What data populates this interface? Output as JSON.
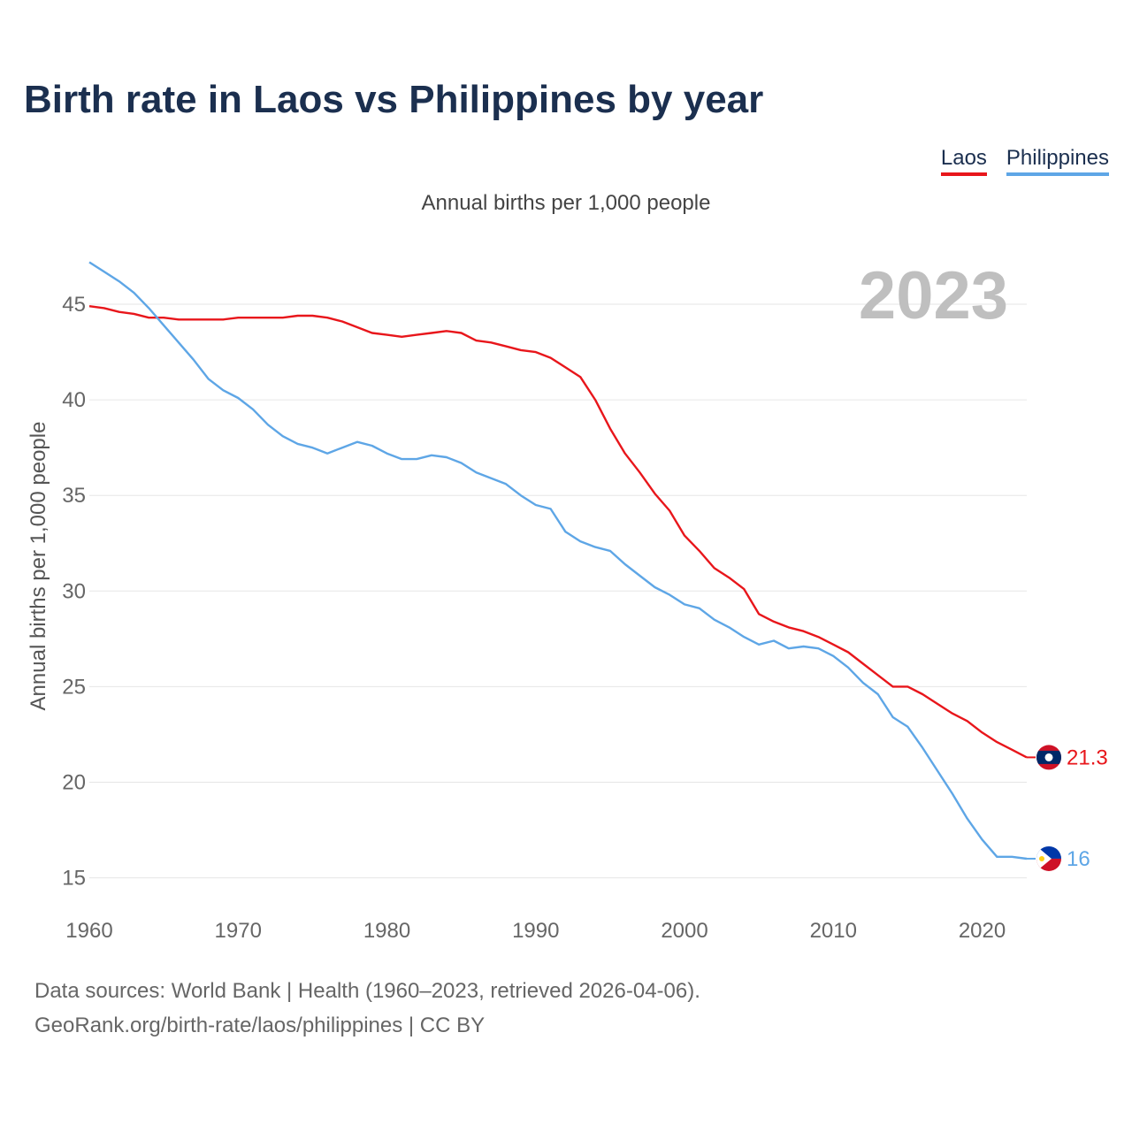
{
  "title": "Birth rate in Laos vs Philippines by year",
  "legend": {
    "laos": "Laos",
    "philippines": "Philippines"
  },
  "footer": {
    "sources": "Data sources: World Bank | Health (1960–2023, retrieved 2026-04-06).",
    "link": "GeoRank.org/birth-rate/laos/philippines | CC BY"
  },
  "colors": {
    "laos": "#e8161b",
    "philippines": "#5ea6e6",
    "title": "#1b2f4f",
    "grid": "#e6e6e6",
    "year": "#bfbfbf"
  },
  "chart_data": {
    "type": "line",
    "title": "Birth rate in Laos vs Philippines by year",
    "subtitle": "Annual births per 1,000 people",
    "ylabel": "Annual births per 1,000 people",
    "xlabel": "",
    "year_label": "2023",
    "xlim": [
      1960,
      2023
    ],
    "ylim": [
      13.5,
      47.5
    ],
    "y_ticks": [
      15,
      20,
      25,
      30,
      35,
      40,
      45
    ],
    "x_ticks": [
      1960,
      1970,
      1980,
      1990,
      2000,
      2010,
      2020
    ],
    "x": [
      1960,
      1961,
      1962,
      1963,
      1964,
      1965,
      1966,
      1967,
      1968,
      1969,
      1970,
      1971,
      1972,
      1973,
      1974,
      1975,
      1976,
      1977,
      1978,
      1979,
      1980,
      1981,
      1982,
      1983,
      1984,
      1985,
      1986,
      1987,
      1988,
      1989,
      1990,
      1991,
      1992,
      1993,
      1994,
      1995,
      1996,
      1997,
      1998,
      1999,
      2000,
      2001,
      2002,
      2003,
      2004,
      2005,
      2006,
      2007,
      2008,
      2009,
      2010,
      2011,
      2012,
      2013,
      2014,
      2015,
      2016,
      2017,
      2018,
      2019,
      2020,
      2021,
      2022,
      2023
    ],
    "series": [
      {
        "name": "Laos",
        "end_label": "21.3",
        "values": [
          44.9,
          44.8,
          44.6,
          44.5,
          44.3,
          44.3,
          44.2,
          44.2,
          44.2,
          44.2,
          44.3,
          44.3,
          44.3,
          44.3,
          44.4,
          44.4,
          44.3,
          44.1,
          43.8,
          43.5,
          43.4,
          43.3,
          43.4,
          43.5,
          43.6,
          43.5,
          43.1,
          43.0,
          42.8,
          42.6,
          42.5,
          42.2,
          41.7,
          41.2,
          40.0,
          38.5,
          37.2,
          36.2,
          35.1,
          34.2,
          32.9,
          32.1,
          31.2,
          30.7,
          30.1,
          28.8,
          28.4,
          28.1,
          27.9,
          27.6,
          27.2,
          26.8,
          26.2,
          25.6,
          25.0,
          25.0,
          24.6,
          24.1,
          23.6,
          23.2,
          22.6,
          22.1,
          21.7,
          21.3
        ]
      },
      {
        "name": "Philippines",
        "end_label": "16",
        "values": [
          47.2,
          46.7,
          46.2,
          45.6,
          44.8,
          43.9,
          43.0,
          42.1,
          41.1,
          40.5,
          40.1,
          39.5,
          38.7,
          38.1,
          37.7,
          37.5,
          37.2,
          37.5,
          37.8,
          37.6,
          37.2,
          36.9,
          36.9,
          37.1,
          37.0,
          36.7,
          36.2,
          35.9,
          35.6,
          35.0,
          34.5,
          34.3,
          33.1,
          32.6,
          32.3,
          32.1,
          31.4,
          30.8,
          30.2,
          29.8,
          29.3,
          29.1,
          28.5,
          28.1,
          27.6,
          27.2,
          27.4,
          27.0,
          27.1,
          27.0,
          26.6,
          26.0,
          25.2,
          24.6,
          23.4,
          22.9,
          21.8,
          20.6,
          19.4,
          18.1,
          17.0,
          16.1,
          16.1,
          16.0
        ]
      }
    ]
  }
}
